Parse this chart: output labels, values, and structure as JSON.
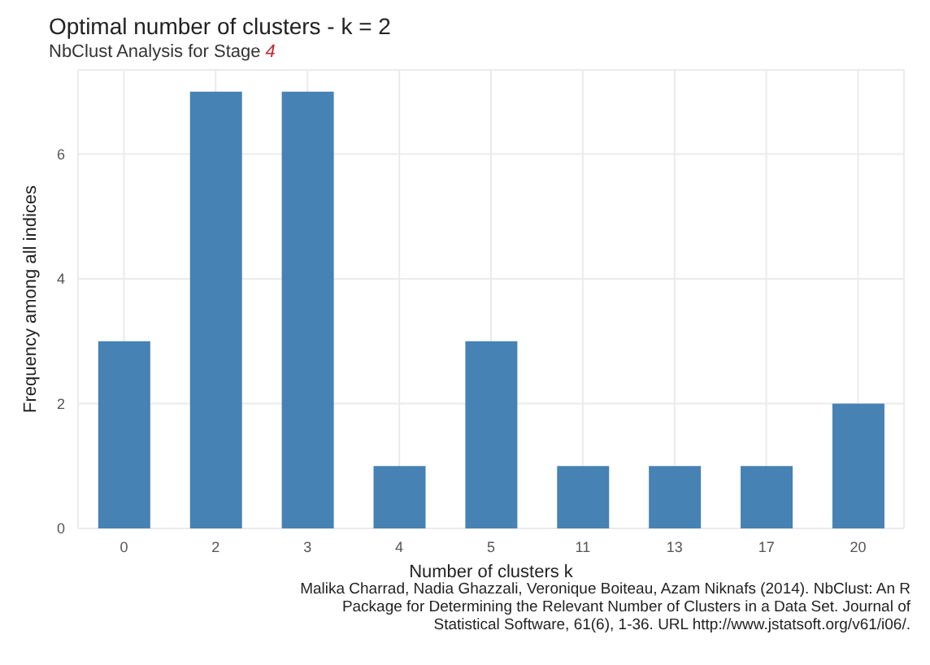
{
  "chart_data": {
    "type": "bar",
    "title": "Optimal number of clusters - k = 2",
    "subtitle": "NbClust Analysis for Stage 4",
    "xlabel": "Number of clusters k",
    "ylabel": "Frequency among all indices",
    "categories": [
      "0",
      "2",
      "3",
      "4",
      "5",
      "11",
      "13",
      "17",
      "20"
    ],
    "values": [
      3,
      7,
      7,
      1,
      3,
      1,
      1,
      1,
      2
    ],
    "color": "#4682b4",
    "ylim": [
      0,
      7.35
    ],
    "yticks": [
      0,
      2,
      4,
      6
    ],
    "grid": true,
    "annotations": [
      "Malika Charrad, Nadia Ghazzali, Veronique Boiteau, Azam Niknafs (2014). NbClust: An R Package for Determining the Relevant Number of Clusters in a Data Set. Journal of Statistical Software, 61(6), 1-36. URL http://www.jstatsoft.org/v61/i06/."
    ]
  }
}
